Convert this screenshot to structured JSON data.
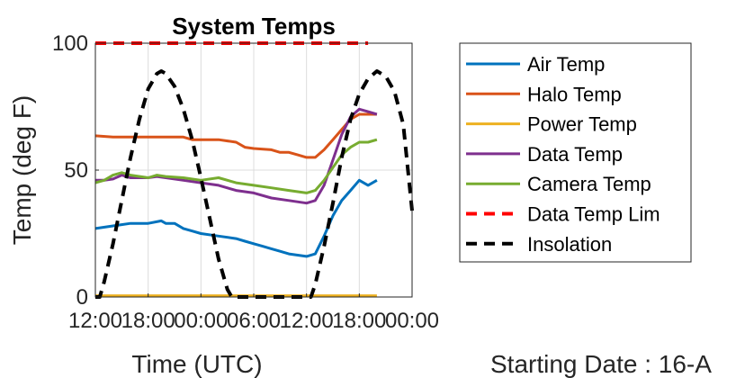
{
  "chart_data": {
    "type": "line",
    "title": "System Temps",
    "xlabel": "Time (UTC)",
    "ylabel": "Temp (deg F)",
    "x_tick_labels": [
      "12:00",
      "18:00",
      "00:00",
      "06:00",
      "12:00",
      "18:00",
      "00:00"
    ],
    "x_tick_hours": [
      0,
      6,
      12,
      18,
      24,
      30,
      36
    ],
    "xlim_hours": [
      0,
      36
    ],
    "y_ticks": [
      0,
      50,
      100
    ],
    "ylim": [
      0,
      100
    ],
    "grid": true,
    "legend_position": "outside-right",
    "footnote": "Starting Date : 16-A",
    "series": [
      {
        "name": "Air Temp",
        "color": "#0072BD",
        "style": "solid",
        "points": [
          [
            0,
            27
          ],
          [
            2,
            28
          ],
          [
            4,
            29
          ],
          [
            6,
            29
          ],
          [
            7.5,
            30
          ],
          [
            8,
            29
          ],
          [
            9,
            29
          ],
          [
            10,
            27
          ],
          [
            11,
            26
          ],
          [
            12,
            25
          ],
          [
            14,
            24
          ],
          [
            16,
            23
          ],
          [
            17,
            22
          ],
          [
            18,
            21
          ],
          [
            19,
            20
          ],
          [
            20,
            19
          ],
          [
            21,
            18
          ],
          [
            22,
            17
          ],
          [
            23,
            16.5
          ],
          [
            24,
            16
          ],
          [
            25,
            17
          ],
          [
            26,
            24
          ],
          [
            27,
            32
          ],
          [
            28,
            38
          ],
          [
            29,
            42
          ],
          [
            30,
            46
          ],
          [
            31,
            44
          ],
          [
            32,
            46
          ]
        ]
      },
      {
        "name": "Halo Temp",
        "color": "#D95319",
        "style": "solid",
        "points": [
          [
            0,
            63.5
          ],
          [
            2,
            63
          ],
          [
            4,
            63
          ],
          [
            6,
            63
          ],
          [
            8,
            63
          ],
          [
            10,
            63
          ],
          [
            11,
            62
          ],
          [
            12,
            62
          ],
          [
            14,
            62
          ],
          [
            16,
            61
          ],
          [
            17,
            59
          ],
          [
            18,
            58.5
          ],
          [
            20,
            58
          ],
          [
            21,
            57
          ],
          [
            22,
            57
          ],
          [
            23,
            56
          ],
          [
            24,
            55
          ],
          [
            25,
            55
          ],
          [
            26,
            58
          ],
          [
            27,
            62
          ],
          [
            28,
            66
          ],
          [
            29,
            70
          ],
          [
            30,
            72
          ],
          [
            31,
            72
          ],
          [
            32,
            72
          ]
        ]
      },
      {
        "name": "Power Temp",
        "color": "#EDB120",
        "style": "solid",
        "points": [
          [
            0,
            0.5
          ],
          [
            32,
            0.5
          ]
        ]
      },
      {
        "name": "Data Temp",
        "color": "#7E2F8E",
        "style": "solid",
        "points": [
          [
            0,
            46
          ],
          [
            1,
            46
          ],
          [
            2,
            46.5
          ],
          [
            3,
            48
          ],
          [
            4,
            47
          ],
          [
            6,
            47
          ],
          [
            7,
            47.5
          ],
          [
            8,
            47
          ],
          [
            10,
            46
          ],
          [
            12,
            45
          ],
          [
            13,
            44.5
          ],
          [
            14,
            44
          ],
          [
            16,
            42
          ],
          [
            18,
            41
          ],
          [
            20,
            39
          ],
          [
            22,
            38
          ],
          [
            24,
            37
          ],
          [
            25,
            38
          ],
          [
            26,
            44
          ],
          [
            27,
            54
          ],
          [
            28,
            64
          ],
          [
            29,
            71
          ],
          [
            30,
            74
          ],
          [
            31,
            73
          ],
          [
            32,
            72
          ]
        ]
      },
      {
        "name": "Camera Temp",
        "color": "#77AC30",
        "style": "solid",
        "points": [
          [
            0,
            45
          ],
          [
            1,
            46
          ],
          [
            2,
            48
          ],
          [
            3,
            49
          ],
          [
            4,
            48
          ],
          [
            6,
            47
          ],
          [
            7,
            48
          ],
          [
            8,
            47.5
          ],
          [
            10,
            47
          ],
          [
            12,
            46
          ],
          [
            14,
            47
          ],
          [
            16,
            45
          ],
          [
            18,
            44
          ],
          [
            20,
            43
          ],
          [
            22,
            42
          ],
          [
            24,
            41
          ],
          [
            25,
            42
          ],
          [
            26,
            46
          ],
          [
            27,
            51
          ],
          [
            28,
            56
          ],
          [
            29,
            59
          ],
          [
            30,
            61
          ],
          [
            31,
            61
          ],
          [
            32,
            62
          ]
        ]
      },
      {
        "name": "Data Temp Lim",
        "color": "#FF0000",
        "style": "dashed",
        "points": [
          [
            0,
            100
          ],
          [
            31,
            100
          ]
        ]
      },
      {
        "name": "Insolation",
        "color": "#000000",
        "style": "dashed",
        "points": [
          [
            0,
            0
          ],
          [
            0.5,
            0
          ],
          [
            1,
            6
          ],
          [
            2,
            21
          ],
          [
            3,
            38
          ],
          [
            4,
            55
          ],
          [
            5,
            70
          ],
          [
            6,
            82
          ],
          [
            7,
            88
          ],
          [
            7.5,
            89
          ],
          [
            8,
            88
          ],
          [
            9,
            83
          ],
          [
            10,
            74
          ],
          [
            11,
            62
          ],
          [
            12,
            47
          ],
          [
            13,
            31
          ],
          [
            14,
            15
          ],
          [
            15,
            3
          ],
          [
            15.5,
            0
          ],
          [
            16,
            0
          ],
          [
            24,
            0
          ],
          [
            24.5,
            0
          ],
          [
            25,
            5
          ],
          [
            26,
            20
          ],
          [
            27,
            37
          ],
          [
            28,
            55
          ],
          [
            29,
            70
          ],
          [
            30,
            80
          ],
          [
            31,
            86
          ],
          [
            32,
            89
          ],
          [
            33,
            87
          ],
          [
            34,
            81
          ],
          [
            35,
            68
          ],
          [
            36,
            34
          ]
        ]
      }
    ]
  }
}
